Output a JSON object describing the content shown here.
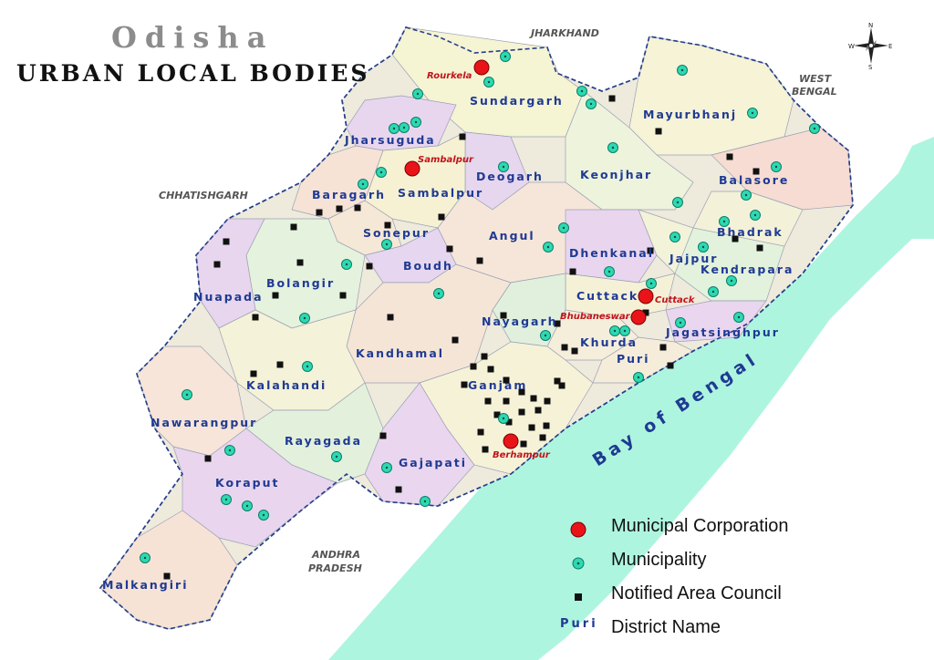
{
  "title": {
    "line1": "Odisha",
    "line2": "URBAN LOCAL BODIES"
  },
  "neighbors": {
    "jharkhand": "JHARKHAND",
    "west_bengal_1": "WEST",
    "west_bengal_2": "BENGAL",
    "chhattisgarh": "CHHATISHGARH",
    "andhra_1": "ANDHRA",
    "andhra_2": "PRADESH"
  },
  "sea": "Bay of Bengal",
  "districts": {
    "jharsuguda": "Jharsuguda",
    "sundargarh": "Sundargarh",
    "mayurbhanj": "Mayurbhanj",
    "sambalpur": "Sambalpur",
    "deogarh": "Deogarh",
    "keonjhar": "Keonjhar",
    "baragarh": "Baragarh",
    "balasore": "Balasore",
    "bhadrak": "Bhadrak",
    "sonepur": "Sonepur",
    "angul": "Angul",
    "dhenkanal": "Dhenkanal",
    "jajpur": "Jajpur",
    "kendrapara": "Kendrapara",
    "bolangir": "Bolangir",
    "boudh": "Boudh",
    "nuapada": "Nuapada",
    "cuttack": "Cuttack",
    "nayagarh": "Nayagarh",
    "jagatsinghpur": "Jagatsinghpur",
    "khurda": "Khurda",
    "kandhamal": "Kandhamal",
    "puri": "Puri",
    "kalahandi": "Kalahandi",
    "ganjam": "Ganjam",
    "nawarangpur": "Nawarangpur",
    "rayagada": "Rayagada",
    "gajapati": "Gajapati",
    "koraput": "Koraput",
    "malkangiri": "Malkangiri"
  },
  "corporations": {
    "rourkela": "Rourkela",
    "sambalpur": "Sambalpur",
    "cuttack": "Cuttack",
    "bhubaneswar": "Bhubaneswar",
    "berhampur": "Berhampur"
  },
  "legend": {
    "corporation": "Municipal Corporation",
    "municipality": "Municipality",
    "nac": "Notified Area Council",
    "district_sample": "Puri",
    "district": "District Name"
  },
  "compass": {
    "n": "N",
    "s": "S",
    "e": "E",
    "w": "W"
  },
  "colors": {
    "sea": "#aef5df",
    "corporation": "#e8141a",
    "municipality": "#2ed9b0",
    "nac": "#111111",
    "district_label": "#1f3a93",
    "border": "#27408b"
  },
  "municipality_count": 46,
  "nac_count": 62
}
